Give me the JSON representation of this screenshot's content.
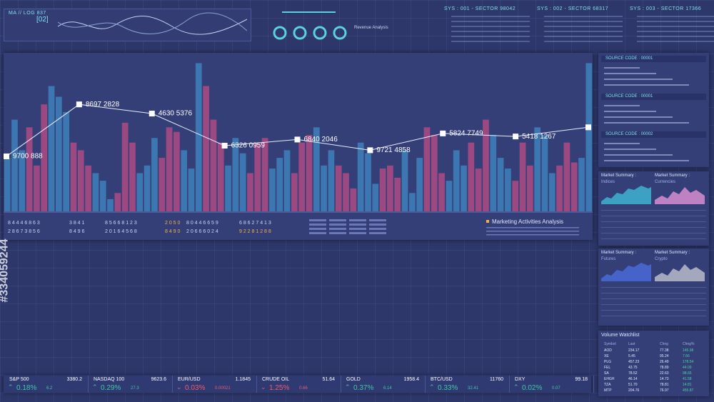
{
  "header": {
    "tag": "MA // LOG 837",
    "code": "[02]",
    "analysis_title": "Revenue Analysis",
    "sectors": [
      "SYS : 001 - SECTOR 98042",
      "SYS : 002 - SECTOR 68317",
      "SYS : 003 - SECTOR 17366"
    ]
  },
  "main_chart": {
    "ylim": [
      0,
      100
    ],
    "colors": [
      "#3e7db8",
      "#a84a82"
    ],
    "bars": [
      35,
      60,
      40,
      55,
      30,
      70,
      82,
      75,
      65,
      45,
      40,
      30,
      25,
      20,
      8,
      12,
      58,
      45,
      25,
      30,
      48,
      35,
      55,
      52,
      40,
      28,
      97,
      82,
      60,
      45,
      30,
      48,
      38,
      25,
      45,
      48,
      28,
      35,
      40,
      25,
      45,
      50,
      55,
      30,
      40,
      30,
      25,
      15,
      45,
      38,
      18,
      28,
      30,
      22,
      40,
      12,
      35,
      55,
      50,
      25,
      20,
      40,
      30,
      45,
      28,
      60,
      50,
      35,
      28,
      20,
      45,
      30,
      55,
      50,
      25,
      30,
      45,
      32,
      35,
      97
    ],
    "line": {
      "values": [
        36,
        70,
        64,
        43,
        47,
        40,
        51,
        49,
        55
      ],
      "labels": [
        "9700 888",
        "8697 2828",
        "4630 5376",
        "6326 0959",
        "6840 2046",
        "9721 4858",
        "5824 7749",
        "5418 1267",
        null
      ]
    },
    "digit_rows": [
      [
        "8 4 4 4 6 8 6 3",
        "3 8 4 1",
        "8 5 6 6 8 1 2 3",
        "2 0 5 0",
        "8 0 4 4 6 6 5 9",
        "6 8 6 2 7 4 1 3"
      ],
      [
        "2 8 6 7 3 8 5 6",
        "8 4 9 6",
        "2 0 1 6 4 5 6 8",
        "8 4 9 0",
        "2 0 6 6 6 0 2 4",
        "9 2 2 8 1 2 8 8"
      ]
    ],
    "caption": "Marketing Activities Analysis"
  },
  "source_panel": {
    "titles": [
      "SOURCE CODE : 00001",
      "SOURCE CODE : 00001",
      "SOURCE CODE : 00002"
    ]
  },
  "market_summary": [
    {
      "title": "Market Summary :",
      "left": "Indices",
      "right": "Currencies"
    },
    {
      "title": "Market Summary :",
      "left": "Futures",
      "right": "Crypto"
    }
  ],
  "watchlist": {
    "title": "Volume Watchlist",
    "columns": [
      "Symbol",
      "Last",
      "Chng",
      "Chng%"
    ],
    "rows": [
      [
        "AOD",
        "234.17",
        "77.38",
        "145.98"
      ],
      [
        "XE",
        "5.45",
        "95.24",
        "7.66"
      ],
      [
        "PLG",
        "457.23",
        "26.49",
        "178.54"
      ],
      [
        "FEL",
        "43.75",
        "78.89",
        "44.09"
      ],
      [
        "SA",
        "78.52",
        "22.63",
        "98.65"
      ],
      [
        "EHGH",
        "46.14",
        "14.73",
        "41.58"
      ],
      [
        "TZA",
        "51.70",
        "78.81",
        "14.81"
      ],
      [
        "MTP",
        "204.76",
        "76.97",
        "455.87"
      ]
    ]
  },
  "ticker": [
    {
      "name": "S&P 500",
      "price": "3380.2",
      "change": "0.18%",
      "delta": "6.2",
      "up": true
    },
    {
      "name": "NASDAQ 100",
      "price": "9623.6",
      "change": "0.29%",
      "delta": "27.3",
      "up": true
    },
    {
      "name": "EUR/USD",
      "price": "1.1845",
      "change": "0.03%",
      "delta": "0.00021",
      "up": false
    },
    {
      "name": "CRUDE OIL",
      "price": "51.64",
      "change": "1.25%",
      "delta": "0.66",
      "up": false
    },
    {
      "name": "GOLD",
      "price": "1958.4",
      "change": "0.37%",
      "delta": "6.14",
      "up": true
    },
    {
      "name": "BTC/USD",
      "price": "11760",
      "change": "0.33%",
      "delta": "32.41",
      "up": true
    },
    {
      "name": "DXY",
      "price": "99.18",
      "change": "0.02%",
      "delta": "0.07",
      "up": true
    }
  ],
  "watermark_id": "#334059244"
}
